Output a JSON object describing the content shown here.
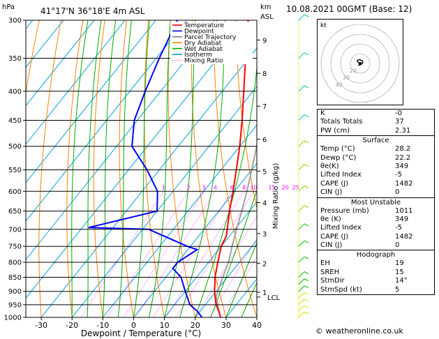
{
  "header": {
    "hpa_label": "hPa",
    "location": "41°17'N  36°18'E  4m  ASL",
    "km_label": "km",
    "asl_label": "ASL",
    "datetime": "10.08.2021  00GMT  (Base: 12)"
  },
  "chart_data": {
    "type": "skew-t",
    "xlabel": "Dewpoint / Temperature (°C)",
    "ylabel_right": "Mixing Ratio (g/kg)",
    "pressure_levels": [
      300,
      350,
      400,
      450,
      500,
      550,
      600,
      650,
      700,
      750,
      800,
      850,
      900,
      950,
      1000
    ],
    "pressure_range_hpa": [
      300,
      1000
    ],
    "temperature_ticks": [
      -30,
      -20,
      -10,
      0,
      10,
      20,
      30,
      40
    ],
    "temperature_range_at_1000": [
      -35,
      40
    ],
    "km_ticks": [
      {
        "label": "9",
        "p": 325
      },
      {
        "label": "8",
        "p": 372
      },
      {
        "label": "7",
        "p": 425
      },
      {
        "label": "6",
        "p": 486
      },
      {
        "label": "5",
        "p": 553
      },
      {
        "label": "4",
        "p": 628
      },
      {
        "label": "3",
        "p": 712
      },
      {
        "label": "2",
        "p": 803
      },
      {
        "label": "1",
        "p": 903
      }
    ],
    "lcl": {
      "label": "LCL",
      "p": 921
    },
    "mixing_ratio_labels": [
      "1",
      "2",
      "3",
      "4",
      "6",
      "8",
      "10",
      "15",
      "20",
      "25"
    ],
    "mixing_ratios": [
      1,
      2,
      3,
      4,
      6,
      8,
      10,
      15,
      20,
      25
    ],
    "legend": [
      {
        "name": "Temperature",
        "color": "#ff0000"
      },
      {
        "name": "Dewpoint",
        "color": "#0000ff"
      },
      {
        "name": "Parcel Trajectory",
        "color": "#808080"
      },
      {
        "name": "Dry Adiabat",
        "color": "#ff8000"
      },
      {
        "name": "Wet Adiabat",
        "color": "#00aa00"
      },
      {
        "name": "Isotherm",
        "color": "#00a0e0"
      },
      {
        "name": "Mixing Ratio",
        "color": "#ff00ff"
      }
    ],
    "temperature": [
      {
        "p": 1000,
        "t": 28.2
      },
      {
        "p": 975,
        "t": 26
      },
      {
        "p": 950,
        "t": 23.5
      },
      {
        "p": 925,
        "t": 21.5
      },
      {
        "p": 900,
        "t": 19.5
      },
      {
        "p": 850,
        "t": 16
      },
      {
        "p": 800,
        "t": 13
      },
      {
        "p": 750,
        "t": 10
      },
      {
        "p": 720,
        "t": 9
      },
      {
        "p": 700,
        "t": 7.5
      },
      {
        "p": 650,
        "t": 3.5
      },
      {
        "p": 600,
        "t": -0.5
      },
      {
        "p": 550,
        "t": -5
      },
      {
        "p": 500,
        "t": -10
      },
      {
        "p": 450,
        "t": -16
      },
      {
        "p": 400,
        "t": -23
      },
      {
        "p": 350,
        "t": -31
      },
      {
        "p": 300,
        "t": -40
      }
    ],
    "dewpoint": [
      {
        "p": 1000,
        "t": 22.2
      },
      {
        "p": 975,
        "t": 19
      },
      {
        "p": 950,
        "t": 15
      },
      {
        "p": 900,
        "t": 10
      },
      {
        "p": 850,
        "t": 5
      },
      {
        "p": 820,
        "t": 0
      },
      {
        "p": 800,
        "t": 0
      },
      {
        "p": 760,
        "t": 3
      },
      {
        "p": 750,
        "t": -1
      },
      {
        "p": 700,
        "t": -18
      },
      {
        "p": 695,
        "t": -38
      },
      {
        "p": 650,
        "t": -20
      },
      {
        "p": 600,
        "t": -25
      },
      {
        "p": 550,
        "t": -34
      },
      {
        "p": 500,
        "t": -45
      },
      {
        "p": 450,
        "t": -51
      },
      {
        "p": 400,
        "t": -55
      },
      {
        "p": 350,
        "t": -59
      },
      {
        "p": 300,
        "t": -63
      }
    ],
    "parcel": [
      {
        "p": 1000,
        "t": 28.2
      },
      {
        "p": 921,
        "t": 21.5
      },
      {
        "p": 850,
        "t": 18.5
      },
      {
        "p": 800,
        "t": 16.5
      },
      {
        "p": 750,
        "t": 13.5
      },
      {
        "p": 700,
        "t": 10.5
      },
      {
        "p": 650,
        "t": 7.5
      },
      {
        "p": 600,
        "t": 4
      },
      {
        "p": 550,
        "t": 0
      },
      {
        "p": 500,
        "t": -4.5
      },
      {
        "p": 450,
        "t": -9.5
      },
      {
        "p": 400,
        "t": -16
      },
      {
        "p": 350,
        "t": -23
      },
      {
        "p": 300,
        "t": -31
      }
    ],
    "wind_barbs_pressure": [
      1000,
      975,
      950,
      925,
      900,
      875,
      850,
      800,
      750,
      700,
      650,
      600,
      550,
      500,
      450,
      400,
      350,
      300
    ],
    "hodograph": {
      "label": "kt",
      "ring_labels": [
        "40",
        "30",
        "20"
      ],
      "trace": [
        [
          0,
          0
        ],
        [
          -2,
          1
        ],
        [
          -3,
          3
        ],
        [
          -1,
          4
        ],
        [
          2,
          3
        ],
        [
          3,
          1
        ],
        [
          1,
          -1
        ],
        [
          -2,
          -2
        ]
      ]
    }
  },
  "indices": {
    "basic": [
      {
        "name": "K",
        "value": "-0"
      },
      {
        "name": "Totals Totals",
        "value": "37"
      },
      {
        "name": "PW (cm)",
        "value": "2.31"
      }
    ],
    "surface": {
      "title": "Surface",
      "rows": [
        {
          "name": "Temp (°C)",
          "value": "28.2"
        },
        {
          "name": "Dewp (°C)",
          "value": "22.2"
        },
        {
          "name": "θe(K)",
          "value": "349"
        },
        {
          "name": "Lifted Index",
          "value": "-5"
        },
        {
          "name": "CAPE (J)",
          "value": "1482"
        },
        {
          "name": "CIN (J)",
          "value": "0"
        }
      ]
    },
    "most_unstable": {
      "title": "Most Unstable",
      "rows": [
        {
          "name": "Pressure (mb)",
          "value": "1011"
        },
        {
          "name": "θe (K)",
          "value": "349"
        },
        {
          "name": "Lifted Index",
          "value": "-5"
        },
        {
          "name": "CAPE (J)",
          "value": "1482"
        },
        {
          "name": "CIN (J)",
          "value": "0"
        }
      ]
    },
    "hodograph": {
      "title": "Hodograph",
      "rows": [
        {
          "name": "EH",
          "value": "19"
        },
        {
          "name": "SREH",
          "value": "15"
        },
        {
          "name": "StmDir",
          "value": "14°"
        },
        {
          "name": "StmSpd (kt)",
          "value": "5"
        }
      ]
    }
  },
  "credit": "© weatheronline.co.uk"
}
